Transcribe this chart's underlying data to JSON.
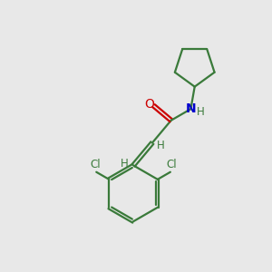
{
  "background_color": "#e8e8e8",
  "bond_color": "#3a7a3a",
  "o_color": "#cc0000",
  "n_color": "#0000cc",
  "cl_color": "#3a7a3a",
  "bond_lw": 1.6,
  "figsize": [
    3.0,
    3.0
  ],
  "dpi": 100,
  "xlim": [
    0,
    10
  ],
  "ylim": [
    0,
    10
  ]
}
